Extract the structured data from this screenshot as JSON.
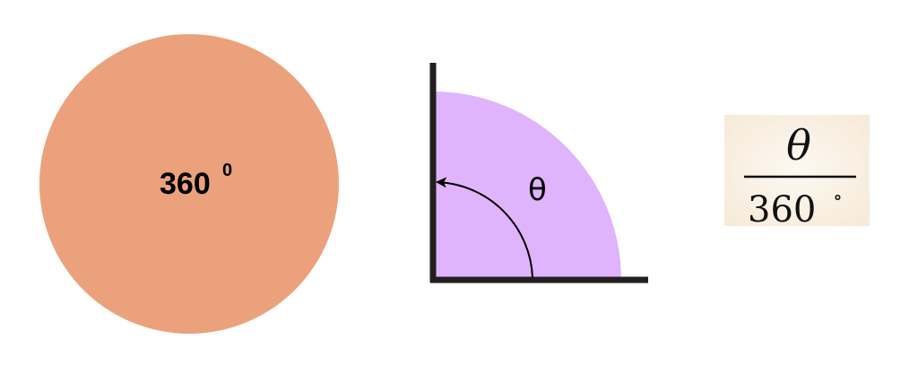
{
  "circle": {
    "label": "360",
    "superscript": "0",
    "fill": "#eba27c"
  },
  "sector": {
    "angle_label": "θ",
    "fill": "#e0b4fc",
    "axis_color": "#231f20"
  },
  "fraction": {
    "numerator": "θ",
    "denominator": "360",
    "degree_symbol": "∘",
    "background": "#fbf3e8"
  }
}
